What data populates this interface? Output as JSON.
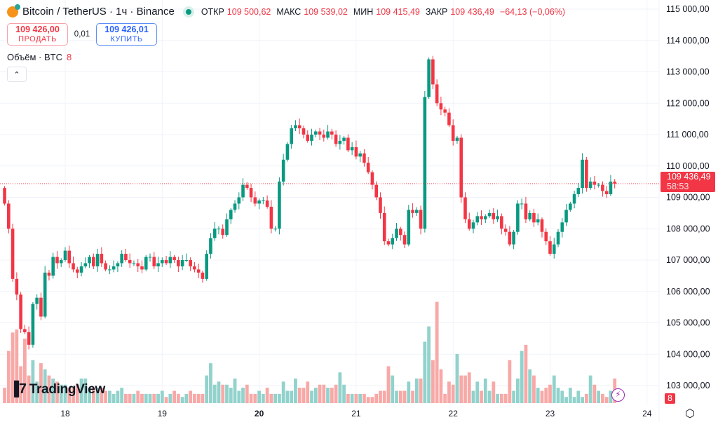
{
  "header": {
    "symbol": "Bitcoin / TetherUS · 1ч · Binance",
    "market_status_color": "#089981",
    "ohlc": {
      "open_label": "ОТКР",
      "open": "109 500,62",
      "high_label": "МАКС",
      "high": "109 539,02",
      "low_label": "МИН",
      "low": "109 415,49",
      "close_label": "ЗАКР",
      "close": "109 436,49",
      "change": "−64,13 (−0,06%)"
    }
  },
  "trade": {
    "sell_price": "109 426,00",
    "sell_label": "ПРОДАТЬ",
    "spread": "0,01",
    "buy_price": "109 426,01",
    "buy_label": "КУПИТЬ"
  },
  "volume_legend": {
    "label": "Объём · BTC",
    "value": "8"
  },
  "branding": "TradingView",
  "last_price_tag": {
    "price": "109 436,49",
    "countdown": "58:53"
  },
  "volume_tag": "8",
  "colors": {
    "up": "#089981",
    "down": "#f23645",
    "up_vol": "#92d2cc",
    "down_vol": "#f7a9a7"
  },
  "icons": {
    "collapse": "chevron-up-icon",
    "lightning": "lightning-icon",
    "settings": "gear-icon"
  },
  "chart_data": {
    "type": "candlestick",
    "interval": "1h",
    "first_open": 109300,
    "ylim": [
      102500,
      115200
    ],
    "y_ticks": [
      "115 000,00",
      "114 000,00",
      "113 000,00",
      "112 000,00",
      "111 000,00",
      "110 000,00",
      "109 000,00",
      "108 000,00",
      "107 000,00",
      "106 000,00",
      "105 000,00",
      "104 000,00",
      "103 000,00"
    ],
    "y_tick_values": [
      115000,
      114000,
      113000,
      112000,
      111000,
      110000,
      109000,
      108000,
      107000,
      106000,
      105000,
      104000,
      103000
    ],
    "x_ticks": [
      "18",
      "19",
      "20",
      "21",
      "22",
      "23",
      "24"
    ],
    "grid": true,
    "close": [
      108800,
      108000,
      106400,
      105900,
      104800,
      104700,
      104300,
      105600,
      105800,
      105200,
      106600,
      106500,
      107100,
      106900,
      107000,
      107300,
      106900,
      106700,
      106600,
      106800,
      106900,
      107100,
      106800,
      107200,
      106900,
      106700,
      106700,
      106800,
      106900,
      107200,
      107000,
      106900,
      106900,
      106800,
      106700,
      107100,
      107100,
      106800,
      106900,
      107000,
      106900,
      107100,
      107000,
      106800,
      107000,
      107000,
      106800,
      106700,
      106600,
      106400,
      107200,
      107700,
      108000,
      108000,
      107800,
      108300,
      108600,
      108800,
      109000,
      109400,
      109300,
      109000,
      108800,
      108900,
      108900,
      108700,
      108000,
      108000,
      109500,
      110200,
      110700,
      111200,
      111300,
      111200,
      111000,
      110800,
      111000,
      111100,
      111000,
      110900,
      111100,
      111000,
      110700,
      110800,
      110900,
      110500,
      110600,
      110300,
      110400,
      110100,
      109800,
      109400,
      109000,
      108500,
      107600,
      107500,
      107700,
      108000,
      107800,
      107500,
      108600,
      108500,
      108600,
      108000,
      112200,
      113400,
      112600,
      112000,
      111800,
      111700,
      111300,
      110800,
      110900,
      109000,
      108300,
      108000,
      108200,
      108400,
      108300,
      108400,
      108500,
      108300,
      108400,
      108000,
      107900,
      107500,
      107900,
      108800,
      108800,
      108300,
      108500,
      108200,
      108300,
      107900,
      107600,
      107200,
      107500,
      107900,
      108200,
      108600,
      108800,
      109100,
      109300,
      110200,
      109300,
      109500,
      109400,
      109400,
      109200,
      109100,
      109500,
      109436.49
    ],
    "volume": [
      5,
      17,
      23,
      24,
      12,
      21,
      9,
      14,
      7,
      13,
      11,
      9,
      8,
      7,
      6,
      6,
      5,
      5,
      6,
      8,
      8,
      5,
      5,
      5,
      5,
      4,
      4,
      3,
      4,
      5,
      3,
      3,
      3,
      4,
      3,
      3,
      3,
      3,
      3,
      4,
      2,
      3,
      4,
      3,
      2,
      3,
      4,
      3,
      3,
      3,
      9,
      13,
      6,
      7,
      6,
      6,
      5,
      8,
      4,
      5,
      6,
      3,
      3,
      4,
      3,
      5,
      3,
      3,
      3,
      7,
      4,
      4,
      8,
      5,
      5,
      7,
      4,
      5,
      6,
      6,
      5,
      5,
      6,
      10,
      6,
      3,
      3,
      3,
      3,
      3,
      2,
      2,
      3,
      4,
      4,
      12,
      9,
      4,
      4,
      4,
      7,
      4,
      8,
      8,
      20,
      25,
      14,
      33,
      11,
      3,
      7,
      6,
      16,
      9,
      9,
      10,
      4,
      7,
      4,
      8,
      4,
      7,
      3,
      3,
      3,
      14,
      4,
      8,
      17,
      19,
      11,
      9,
      5,
      4,
      5,
      6,
      9,
      5,
      4,
      2,
      5,
      2,
      4,
      2,
      3,
      9,
      6,
      4,
      3,
      2,
      4,
      8
    ],
    "last_price": 109436.49
  }
}
